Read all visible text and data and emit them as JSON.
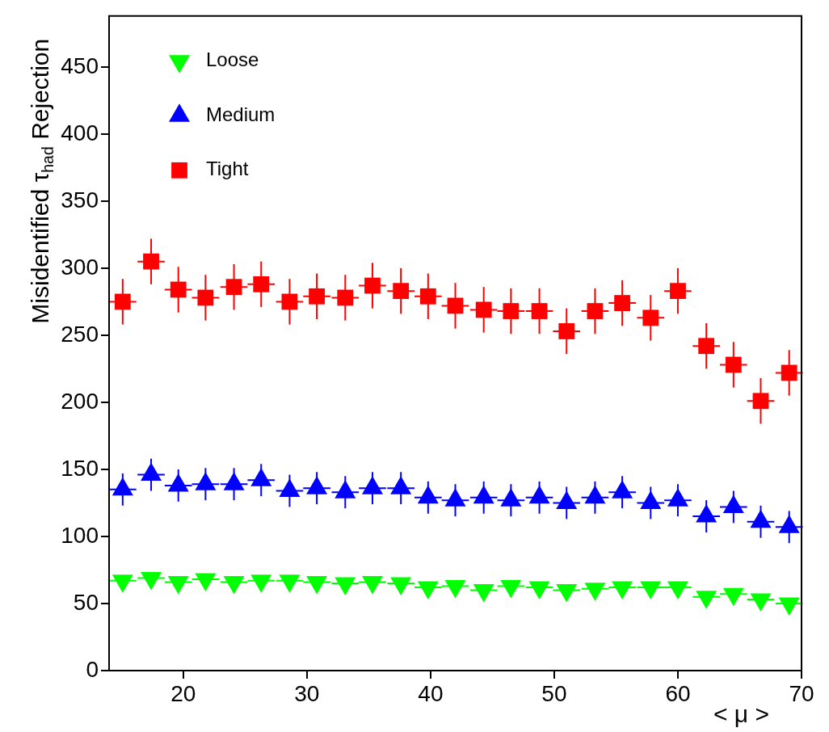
{
  "chart_data": {
    "type": "scatter",
    "xlabel": "< μ >",
    "ylabel": "Misidentified τ$_{had}$ Rejection",
    "x": [
      15.1,
      17.4,
      19.6,
      21.8,
      24.1,
      26.3,
      28.6,
      30.8,
      33.1,
      35.3,
      37.6,
      39.8,
      42.0,
      44.3,
      46.5,
      48.8,
      51.0,
      53.3,
      55.5,
      57.8,
      60.0,
      62.3,
      64.5,
      66.7,
      69.0
    ],
    "xlim": [
      14,
      70
    ],
    "xticks": [
      20,
      30,
      40,
      50,
      60,
      70
    ],
    "ylim": [
      0,
      488
    ],
    "yticks": [
      0,
      50,
      100,
      150,
      200,
      250,
      300,
      350,
      400,
      450
    ],
    "grid": false,
    "legend": "top left",
    "series": [
      {
        "name": "Loose",
        "color": "#00ff00",
        "marker": "triangle_down",
        "values": [
          67,
          69,
          66,
          68,
          66,
          67,
          67,
          66,
          65,
          66,
          65,
          62,
          63,
          60,
          63,
          62,
          60,
          61,
          62,
          62,
          62,
          55,
          57,
          53,
          50
        ],
        "xerrors": [
          1.1,
          1.1,
          1.1,
          1.1,
          1.1,
          1.1,
          1.1,
          1.1,
          1.1,
          1.1,
          1.1,
          1.1,
          1.1,
          1.1,
          1.1,
          1.1,
          1.1,
          1.1,
          1.1,
          1.1,
          1.1,
          1.1,
          1.1,
          1.1,
          1.1
        ]
      },
      {
        "name": "Medium",
        "color": "#0000ff",
        "marker": "triangle",
        "values": [
          135,
          146,
          138,
          139,
          139,
          142,
          134,
          136,
          133,
          136,
          136,
          129,
          127,
          129,
          127,
          129,
          125,
          129,
          133,
          125,
          127,
          115,
          122,
          111,
          107
        ],
        "errors": [
          12,
          12,
          12,
          12,
          12,
          12,
          12,
          12,
          12,
          12,
          12,
          12,
          12,
          12,
          12,
          12,
          12,
          12,
          12,
          12,
          12,
          12,
          12,
          12,
          12
        ],
        "xerrors": [
          1.1,
          1.1,
          1.1,
          1.1,
          1.1,
          1.1,
          1.1,
          1.1,
          1.1,
          1.1,
          1.1,
          1.1,
          1.1,
          1.1,
          1.1,
          1.1,
          1.1,
          1.1,
          1.1,
          1.1,
          1.1,
          1.1,
          1.1,
          1.1,
          1.1
        ]
      },
      {
        "name": "Tight",
        "color": "#ff0000",
        "marker": "square",
        "values": [
          275,
          305,
          284,
          278,
          286,
          288,
          275,
          279,
          278,
          287,
          283,
          279,
          272,
          269,
          268,
          268,
          253,
          268,
          274,
          263,
          283,
          242,
          228,
          201,
          222
        ],
        "errors": [
          17,
          17,
          17,
          17,
          17,
          17,
          17,
          17,
          17,
          17,
          17,
          17,
          17,
          17,
          17,
          17,
          17,
          17,
          17,
          17,
          17,
          17,
          17,
          17,
          17
        ],
        "xerrors": [
          1.1,
          1.1,
          1.1,
          1.1,
          1.1,
          1.1,
          1.1,
          1.1,
          1.1,
          1.1,
          1.1,
          1.1,
          1.1,
          1.1,
          1.1,
          1.1,
          1.1,
          1.1,
          1.1,
          1.1,
          1.1,
          1.1,
          1.1,
          1.1,
          1.1
        ]
      }
    ]
  }
}
